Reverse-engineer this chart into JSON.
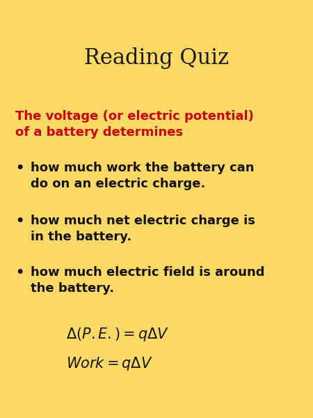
{
  "title": "Reading Quiz",
  "background_color": "#FFD966",
  "title_color": "#1a1a1a",
  "title_fontsize": 22,
  "title_font": "serif",
  "red_text_line1": "The voltage (or electric potential)",
  "red_text_line2": "of a battery determines",
  "red_color": "#CC0000",
  "red_fontsize": 13,
  "bullet_color": "#111111",
  "bullet_fontsize": 13,
  "bullets": [
    "how much work the battery can\ndo on an electric charge.",
    "how much net electric charge is\nin the battery.",
    "how much electric field is around\nthe battery."
  ],
  "eq1": "$\\Delta(P.E.) = q\\Delta V$",
  "eq2": "$Work = q\\Delta V$",
  "eq_fontsize": 15,
  "fig_width": 4.5,
  "fig_height": 6.0,
  "dpi": 100
}
